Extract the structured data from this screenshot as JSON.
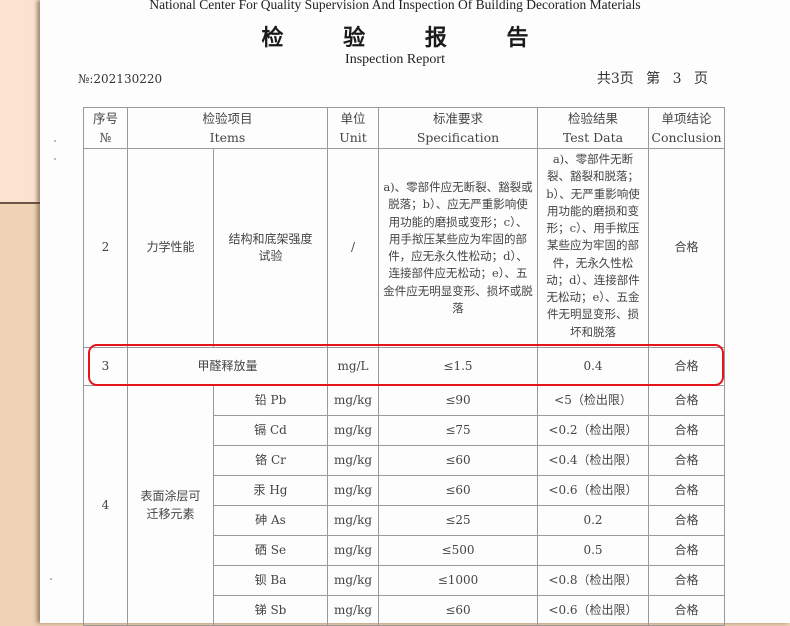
{
  "header": {
    "organization": "National Center For Quality Supervision And Inspection Of Building Decoration Materials",
    "title": "检 验 报 告",
    "subtitle": "Inspection Report",
    "report_no": "№:202130220",
    "page_info": "共3页 第 3 页"
  },
  "table": {
    "columns": [
      {
        "cn": "序号",
        "en": "№"
      },
      {
        "cn": "检验项目",
        "en": "Items"
      },
      {
        "cn": "单位",
        "en": "Unit"
      },
      {
        "cn": "标准要求",
        "en": "Specification"
      },
      {
        "cn": "检验结果",
        "en": "Test Data"
      },
      {
        "cn": "单项结论",
        "en": "Conclusion"
      }
    ],
    "row2": {
      "no": "2",
      "item": "力学性能",
      "subitem": "结构和底架强度试验",
      "unit": "/",
      "spec": "a)、零部件应无断裂、豁裂或脱落；b）、应无严重影响使用功能的磨损或变形；c）、用手揿压某些应为牢固的部件，应无永久性松动；d）、连接部件应无松动；e）、五金件应无明显变形、损坏或脱落",
      "result": "a)、零部件无断裂、豁裂和脱落；b）、无严重影响使用功能的磨损和变形；c）、用手揿压某些应为牢固的部件，无永久性松动；d）、连接部件无松动；e）、五金件无明显变形、损坏和脱落",
      "conclusion": "合格"
    },
    "row3": {
      "no": "3",
      "item": "甲醛释放量",
      "unit": "mg/L",
      "spec": "≤1.5",
      "result": "0.4",
      "conclusion": "合格"
    },
    "row4": {
      "no": "4",
      "item": "表面涂层可迁移元素",
      "subrows": [
        {
          "element": "铅 Pb",
          "unit": "mg/kg",
          "spec": "≤90",
          "result": "<5（检出限）",
          "conclusion": "合格"
        },
        {
          "element": "镉 Cd",
          "unit": "mg/kg",
          "spec": "≤75",
          "result": "<0.2（检出限）",
          "conclusion": "合格"
        },
        {
          "element": "铬 Cr",
          "unit": "mg/kg",
          "spec": "≤60",
          "result": "<0.4（检出限）",
          "conclusion": "合格"
        },
        {
          "element": "汞 Hg",
          "unit": "mg/kg",
          "spec": "≤60",
          "result": "<0.6（检出限）",
          "conclusion": "合格"
        },
        {
          "element": "砷 As",
          "unit": "mg/kg",
          "spec": "≤25",
          "result": "0.2",
          "conclusion": "合格"
        },
        {
          "element": "硒 Se",
          "unit": "mg/kg",
          "spec": "≤500",
          "result": "0.5",
          "conclusion": "合格"
        },
        {
          "element": "钡 Ba",
          "unit": "mg/kg",
          "spec": "≤1000",
          "result": "<0.8（检出限）",
          "conclusion": "合格"
        },
        {
          "element": "锑 Sb",
          "unit": "mg/kg",
          "spec": "≤60",
          "result": "<0.6（检出限）",
          "conclusion": "合格"
        }
      ]
    }
  },
  "colors": {
    "highlight": "#e5141b",
    "background": "#efd3b5"
  }
}
